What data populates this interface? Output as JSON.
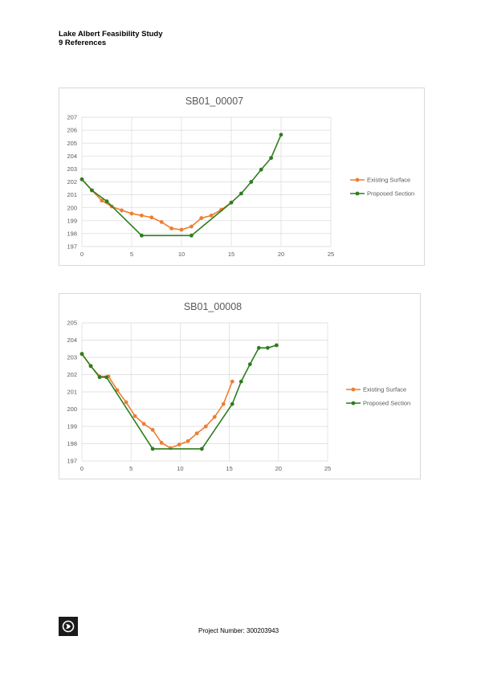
{
  "header": {
    "line1": "Lake Albert Feasibility Study",
    "line2": "9 References"
  },
  "footer": {
    "project_number": "Project Number: 300203943",
    "logo_icon": "company-logo-icon"
  },
  "colors": {
    "existing": "#ED7D31",
    "proposed": "#2E7D1F",
    "grid": "#D9D9D9"
  },
  "chart_data": [
    {
      "type": "line",
      "title": "SB01_00007",
      "xlim": [
        0,
        25
      ],
      "ylim": [
        197,
        207
      ],
      "xticks": [
        0,
        5,
        10,
        15,
        20,
        25
      ],
      "yticks": [
        197,
        198,
        199,
        200,
        201,
        202,
        203,
        204,
        205,
        206,
        207
      ],
      "legend": "right",
      "series": [
        {
          "name": "Existing Surface",
          "x": [
            0,
            1,
            2,
            3,
            4,
            5,
            6,
            7,
            8,
            9,
            10,
            11,
            12,
            13,
            14,
            15
          ],
          "y": [
            202.2,
            201.35,
            200.55,
            200.1,
            199.8,
            199.55,
            199.4,
            199.25,
            198.9,
            198.4,
            198.3,
            198.55,
            199.2,
            199.4,
            199.85,
            200.4
          ]
        },
        {
          "name": "Proposed Section",
          "x": [
            0,
            1,
            2.5,
            6,
            11,
            15,
            16,
            17,
            18,
            19,
            20
          ],
          "y": [
            202.2,
            201.35,
            200.5,
            197.85,
            197.85,
            200.4,
            201.1,
            202.0,
            202.95,
            203.85,
            205.65
          ]
        }
      ]
    },
    {
      "type": "line",
      "title": "SB01_00008",
      "xlim": [
        0,
        25
      ],
      "ylim": [
        197,
        205
      ],
      "xticks": [
        0,
        5,
        10,
        15,
        20,
        25
      ],
      "yticks": [
        197,
        198,
        199,
        200,
        201,
        202,
        203,
        204,
        205
      ],
      "legend": "right",
      "series": [
        {
          "name": "Existing Surface",
          "x": [
            0,
            0.9,
            1.8,
            2.7,
            3.6,
            4.5,
            5.4,
            6.3,
            7.2,
            8.1,
            9.0,
            9.9,
            10.8,
            11.7,
            12.6,
            13.5,
            14.4,
            15.3
          ],
          "y": [
            203.2,
            202.5,
            201.9,
            201.9,
            201.1,
            200.4,
            199.6,
            199.15,
            198.8,
            198.05,
            197.75,
            197.95,
            198.15,
            198.6,
            199.0,
            199.55,
            200.3,
            201.6
          ]
        },
        {
          "name": "Proposed Section",
          "x": [
            0,
            0.9,
            1.8,
            2.5,
            7.2,
            12.2,
            15.3,
            16.2,
            17.1,
            18.0,
            18.9,
            19.8
          ],
          "y": [
            203.2,
            202.5,
            201.85,
            201.85,
            197.7,
            197.7,
            200.3,
            201.6,
            202.6,
            203.55,
            203.55,
            203.7
          ]
        }
      ]
    }
  ]
}
